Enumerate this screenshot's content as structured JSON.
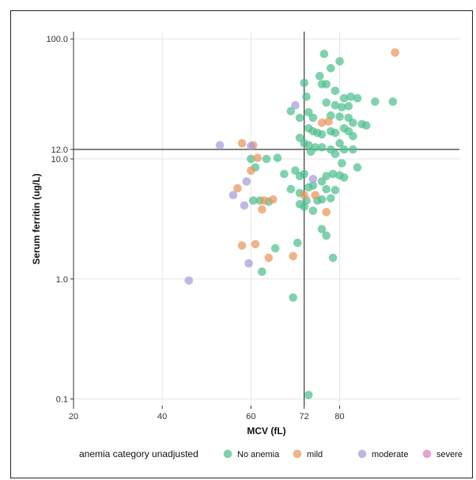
{
  "chart_data": {
    "type": "scatter",
    "xlabel": "MCV (fL)",
    "ylabel": "Serum ferritin (ug/L)",
    "x_scale": "linear",
    "y_scale": "log",
    "xlim": [
      20,
      107
    ],
    "ylim": [
      0.088,
      115
    ],
    "x_ticks": [
      20,
      40,
      60,
      72,
      80
    ],
    "y_ticks": [
      0.1,
      1.0,
      10.0,
      12.0,
      100.0
    ],
    "x_tick_labels": [
      "20",
      "40",
      "60",
      "72",
      "80"
    ],
    "y_tick_labels": [
      "0.1",
      "1.0",
      "10.0",
      "12.0",
      "100.0"
    ],
    "reference_lines": {
      "x": 72,
      "y": 12
    },
    "grid": true,
    "legend_position": "bottom",
    "legend_title": "anemia category unadjusted",
    "series": [
      {
        "name": "No anemia",
        "color": "#4fbf8f",
        "points": [
          [
            72,
            43
          ],
          [
            72.5,
            33
          ],
          [
            73,
            24.5
          ],
          [
            76.5,
            75
          ],
          [
            78,
            57
          ],
          [
            80,
            65
          ],
          [
            75.5,
            49
          ],
          [
            76,
            42
          ],
          [
            77,
            42
          ],
          [
            79,
            37
          ],
          [
            81,
            32
          ],
          [
            82.5,
            33
          ],
          [
            84,
            32
          ],
          [
            88,
            30
          ],
          [
            77,
            29.5
          ],
          [
            79,
            28
          ],
          [
            80.5,
            27
          ],
          [
            82,
            27.5
          ],
          [
            69,
            25
          ],
          [
            71,
            22
          ],
          [
            74,
            22
          ],
          [
            78,
            23
          ],
          [
            80,
            22.5
          ],
          [
            82,
            22
          ],
          [
            83,
            20
          ],
          [
            85,
            19.5
          ],
          [
            86,
            19
          ],
          [
            92,
            30
          ],
          [
            73,
            18
          ],
          [
            74,
            17
          ],
          [
            75,
            16.5
          ],
          [
            76,
            16
          ],
          [
            78,
            17
          ],
          [
            79,
            16.5
          ],
          [
            81,
            18
          ],
          [
            82,
            17
          ],
          [
            83,
            15.5
          ],
          [
            71,
            15
          ],
          [
            72,
            13.5
          ],
          [
            73,
            13
          ],
          [
            74.5,
            12.5
          ],
          [
            76,
            12.5
          ],
          [
            78,
            12
          ],
          [
            80,
            13.5
          ],
          [
            81,
            12
          ],
          [
            83,
            12
          ],
          [
            73.5,
            11.5
          ],
          [
            79,
            11
          ],
          [
            63.5,
            10
          ],
          [
            60,
            10
          ],
          [
            66,
            10.2
          ],
          [
            80.5,
            9.2
          ],
          [
            84,
            8.5
          ],
          [
            61,
            8.5
          ],
          [
            67.5,
            7.5
          ],
          [
            70,
            8
          ],
          [
            71,
            7.2
          ],
          [
            72,
            7.5
          ],
          [
            77,
            7.2
          ],
          [
            78.5,
            7.5
          ],
          [
            80,
            7.3
          ],
          [
            81,
            7
          ],
          [
            76,
            6.5
          ],
          [
            74,
            6
          ],
          [
            69,
            5.6
          ],
          [
            71,
            5.2
          ],
          [
            73,
            5.8
          ],
          [
            77,
            5.6
          ],
          [
            79,
            5.5
          ],
          [
            72.5,
            4.5
          ],
          [
            75,
            4.5
          ],
          [
            76,
            4.6
          ],
          [
            78,
            4.7
          ],
          [
            60.5,
            4.5
          ],
          [
            62,
            4.5
          ],
          [
            64,
            4.4
          ],
          [
            71,
            4.2
          ],
          [
            72,
            4
          ],
          [
            74,
            3.7
          ],
          [
            76,
            2.6
          ],
          [
            77,
            2.3
          ],
          [
            78.5,
            1.5
          ],
          [
            70.5,
            2
          ],
          [
            65.5,
            1.8
          ],
          [
            62.5,
            1.15
          ],
          [
            69.5,
            0.7
          ],
          [
            73,
            0.108
          ]
        ]
      },
      {
        "name": "mild",
        "color": "#e8955a",
        "points": [
          [
            92.5,
            77
          ],
          [
            76,
            20
          ],
          [
            77.5,
            20.5
          ],
          [
            58,
            13.5
          ],
          [
            60.5,
            13
          ],
          [
            61.5,
            10.2
          ],
          [
            60,
            8
          ],
          [
            57,
            5.7
          ],
          [
            65,
            4.6
          ],
          [
            63,
            4.5
          ],
          [
            62.5,
            3.8
          ],
          [
            72,
            5
          ],
          [
            74.5,
            5
          ],
          [
            77,
            3.6
          ],
          [
            58,
            1.9
          ],
          [
            61,
            1.95
          ],
          [
            64,
            1.5
          ],
          [
            69.5,
            1.55
          ]
        ]
      },
      {
        "name": "moderate",
        "color": "#a89bd8",
        "points": [
          [
            70,
            28
          ],
          [
            53,
            13
          ],
          [
            60,
            12.8
          ],
          [
            59,
            6.5
          ],
          [
            56,
            5
          ],
          [
            58.5,
            4.1
          ],
          [
            74,
            6.8
          ],
          [
            59.5,
            1.35
          ],
          [
            46,
            0.97
          ]
        ]
      },
      {
        "name": "severe",
        "color": "#e07bbf",
        "points": []
      }
    ]
  }
}
